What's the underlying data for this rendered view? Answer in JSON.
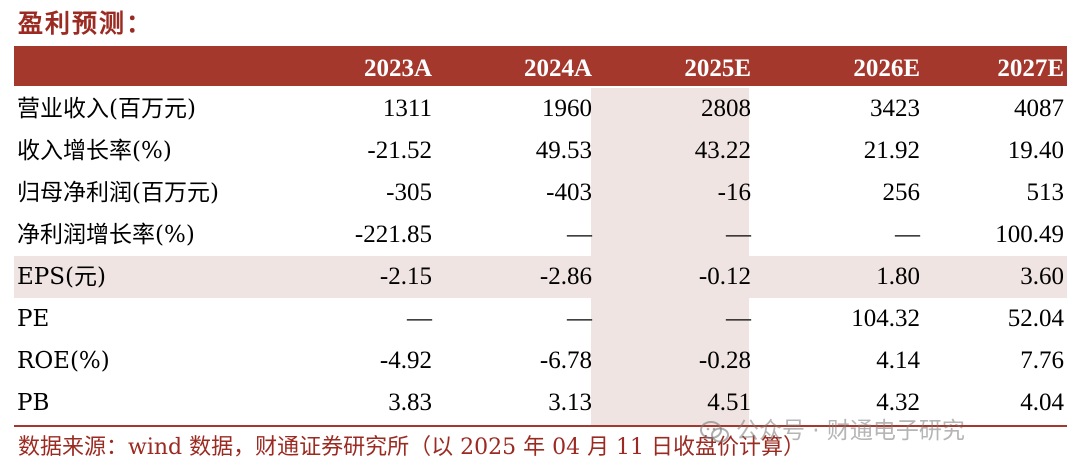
{
  "title": "盈利预测：",
  "table": {
    "headers": [
      "2023A",
      "2024A",
      "2025E",
      "2026E",
      "2027E"
    ],
    "rows": [
      {
        "label": "营业收入(百万元)",
        "values": [
          "1311",
          "1960",
          "2808",
          "3423",
          "4087"
        ]
      },
      {
        "label": "收入增长率(%)",
        "values": [
          "-21.52",
          "49.53",
          "43.22",
          "21.92",
          "19.40"
        ]
      },
      {
        "label": "归母净利润(百万元)",
        "values": [
          "-305",
          "-403",
          "-16",
          "256",
          "513"
        ]
      },
      {
        "label": "净利润增长率(%)",
        "values": [
          "-221.85",
          "—",
          "—",
          "—",
          "100.49"
        ]
      },
      {
        "label": "EPS(元)",
        "values": [
          "-2.15",
          "-2.86",
          "-0.12",
          "1.80",
          "3.60"
        ]
      },
      {
        "label": "PE",
        "values": [
          "—",
          "—",
          "—",
          "104.32",
          "52.04"
        ]
      },
      {
        "label": "ROE(%)",
        "values": [
          "-4.92",
          "-6.78",
          "-0.28",
          "4.14",
          "7.76"
        ]
      },
      {
        "label": "PB",
        "values": [
          "3.83",
          "3.13",
          "4.51",
          "4.32",
          "4.04"
        ]
      }
    ]
  },
  "source": "数据来源：wind 数据，财通证券研究所（以 2025 年 04 月 11 日收盘价计算）",
  "watermark": {
    "text": "公众号 · 财通电子研究",
    "icon": "wechat-icon"
  },
  "colors": {
    "accent": "#a5382d",
    "shade": "#efe4e1",
    "title": "#9b2b22"
  }
}
